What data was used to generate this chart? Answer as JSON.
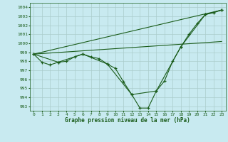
{
  "title": "Graphe pression niveau de la mer (hPa)",
  "bg_color": "#c8eaf0",
  "grid_color": "#aacccc",
  "line_color": "#1a5c1a",
  "xlim": [
    -0.5,
    23.5
  ],
  "ylim": [
    992.5,
    1004.5
  ],
  "yticks": [
    993,
    994,
    995,
    996,
    997,
    998,
    999,
    1000,
    1001,
    1002,
    1003,
    1004
  ],
  "xticks": [
    0,
    1,
    2,
    3,
    4,
    5,
    6,
    7,
    8,
    9,
    10,
    11,
    12,
    13,
    14,
    15,
    16,
    17,
    18,
    19,
    20,
    21,
    22,
    23
  ],
  "series_main": {
    "x": [
      0,
      1,
      2,
      3,
      4,
      5,
      6,
      7,
      8,
      9,
      10,
      11,
      12,
      13,
      14,
      15,
      16,
      17,
      18,
      19,
      20,
      21,
      22,
      23
    ],
    "y": [
      998.8,
      997.9,
      997.6,
      997.9,
      998.0,
      998.5,
      998.8,
      998.5,
      998.3,
      997.7,
      997.2,
      995.7,
      994.3,
      992.8,
      992.8,
      994.7,
      995.8,
      998.0,
      999.6,
      1001.0,
      1002.2,
      1003.2,
      1003.4,
      1003.7
    ]
  },
  "series_3h": {
    "x": [
      0,
      3,
      6,
      9,
      12,
      15,
      18,
      21,
      23
    ],
    "y": [
      998.8,
      997.9,
      998.8,
      997.7,
      994.3,
      994.7,
      999.6,
      1003.2,
      1003.7
    ]
  },
  "trend1": {
    "x": [
      0,
      23
    ],
    "y": [
      998.8,
      1003.7
    ]
  },
  "trend2": {
    "x": [
      0,
      23
    ],
    "y": [
      998.8,
      1000.2
    ]
  }
}
